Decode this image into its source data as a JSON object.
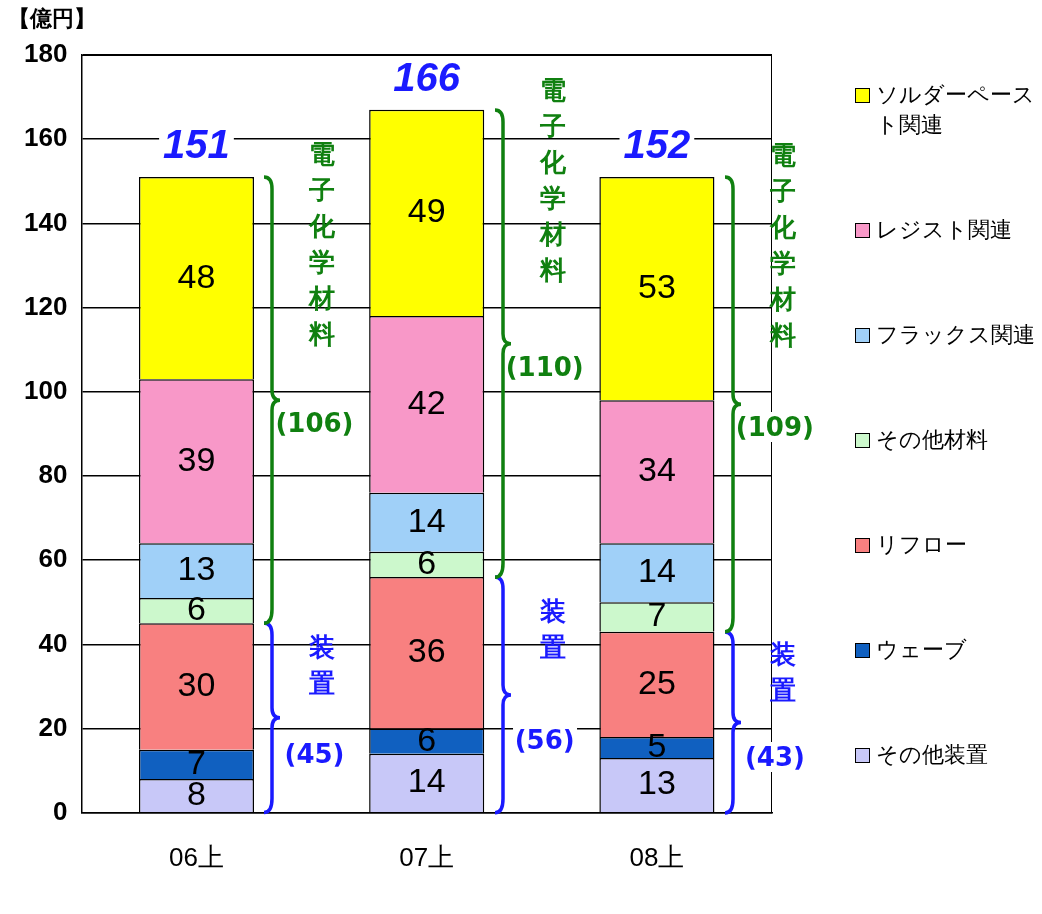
{
  "chart_data": {
    "type": "bar",
    "stacked": true,
    "ylabel": "【億円】",
    "categories": [
      "06上",
      "07上",
      "08上"
    ],
    "series": [
      {
        "name": "その他装置",
        "color": "#c8c8f8",
        "values": [
          8,
          14,
          13
        ]
      },
      {
        "name": "ウェーブ",
        "color": "#1060c0",
        "values": [
          7,
          6,
          5
        ]
      },
      {
        "name": "リフロー",
        "color": "#f88080",
        "values": [
          30,
          36,
          25
        ]
      },
      {
        "name": "その他材料",
        "color": "#ccf8cc",
        "values": [
          6,
          6,
          7
        ]
      },
      {
        "name": "フラックス関連",
        "color": "#a0d0f8",
        "values": [
          13,
          14,
          14
        ]
      },
      {
        "name": "レジスト関連",
        "color": "#f898c8",
        "values": [
          39,
          42,
          34
        ]
      },
      {
        "name": "ソルダーペースト関連",
        "color": "#ffff00",
        "values": [
          48,
          49,
          53
        ]
      }
    ],
    "ylim": [
      0,
      180
    ],
    "yticks": [
      0,
      20,
      40,
      60,
      80,
      100,
      120,
      140,
      160,
      180
    ],
    "grid": "y",
    "legend": "right",
    "data_labels": true,
    "totals": [
      "151",
      "166",
      "152"
    ],
    "annotations": [
      "電子化学材料",
      "(106)",
      "装置",
      "(45)",
      "電子化学材料",
      "(110)",
      "装置",
      "(56)",
      "電子化学材料",
      "(109)",
      "装置",
      "(43)"
    ]
  }
}
